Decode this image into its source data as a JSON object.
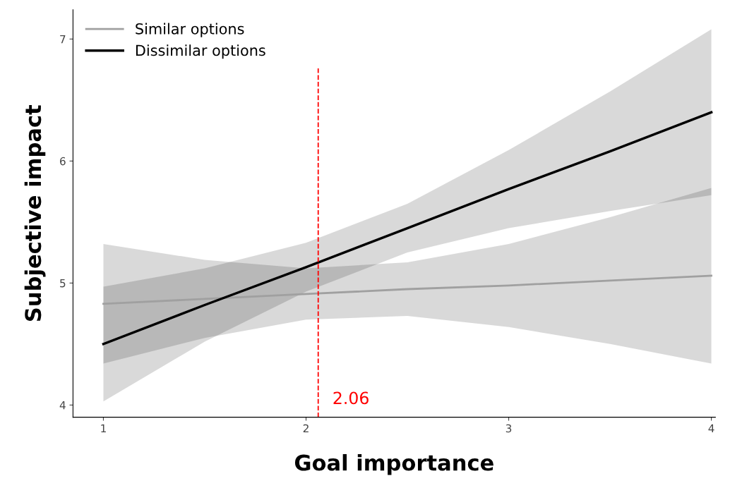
{
  "chart_data": {
    "type": "line",
    "xlabel": "Goal importance",
    "ylabel": "Subjective impact",
    "x": [
      1,
      1.5,
      2,
      2.5,
      3,
      3.5,
      4
    ],
    "series": [
      {
        "name": "Similar options",
        "color": "#a0a0a0",
        "values": [
          4.83,
          4.87,
          4.91,
          4.95,
          4.98,
          5.02,
          5.06
        ],
        "lower": [
          4.34,
          4.55,
          4.7,
          4.73,
          4.64,
          4.5,
          4.34
        ],
        "upper": [
          5.32,
          5.19,
          5.12,
          5.17,
          5.32,
          5.54,
          5.78
        ]
      },
      {
        "name": "Dissimilar options",
        "color": "#000000",
        "values": [
          4.5,
          4.82,
          5.13,
          5.45,
          5.77,
          6.08,
          6.4
        ],
        "lower": [
          4.03,
          4.52,
          4.93,
          5.25,
          5.45,
          5.59,
          5.72
        ],
        "upper": [
          4.97,
          5.12,
          5.33,
          5.65,
          6.09,
          6.57,
          7.08
        ]
      }
    ],
    "xlim": [
      0.85,
      4.02
    ],
    "xticks": [
      1,
      2,
      3,
      4
    ],
    "ylim": [
      3.9,
      7.24
    ],
    "yticks": [
      4,
      5,
      6,
      7
    ],
    "ref_lines": [
      {
        "axis": "x",
        "value": 2.06,
        "label": "2.06",
        "color": "#ff0000",
        "line_style": "dashed"
      }
    ],
    "grid": false,
    "legend": "top left"
  }
}
